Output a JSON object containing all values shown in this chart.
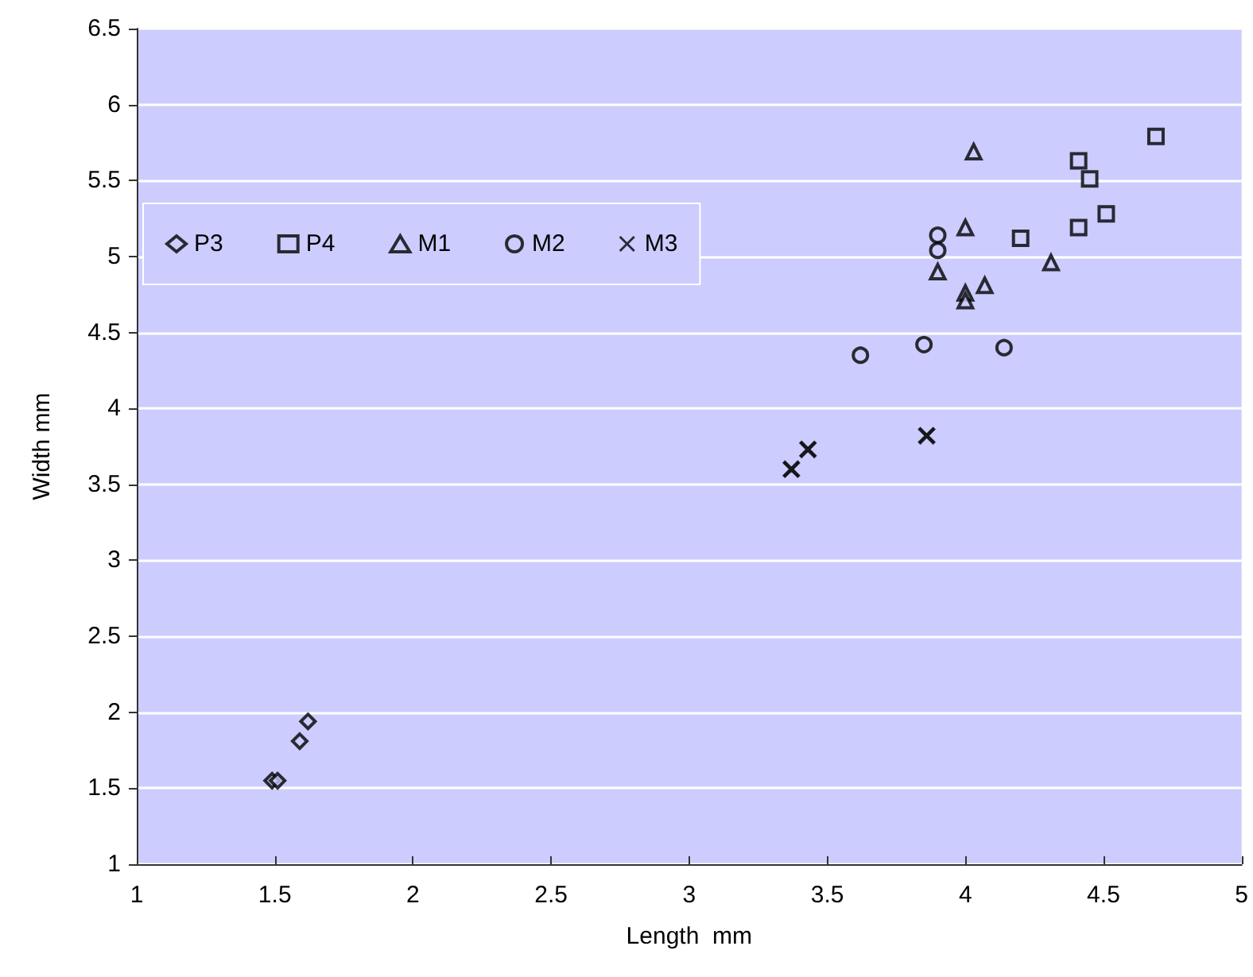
{
  "chart_data": {
    "type": "scatter",
    "xlabel": "Length  mm",
    "ylabel": "Width mm",
    "xlim": [
      1,
      5
    ],
    "xticks": [
      1,
      1.5,
      2,
      2.5,
      3,
      3.5,
      4,
      4.5,
      5
    ],
    "ylim": [
      1,
      6.5
    ],
    "yticks": [
      1,
      1.5,
      2,
      2.5,
      3,
      3.5,
      4,
      4.5,
      5,
      5.5,
      6,
      6.5
    ],
    "grid": "y",
    "legend": "top left",
    "series": [
      {
        "name": "P3",
        "color": "#000000",
        "marker": "diamond",
        "x": [
          1.49,
          1.51,
          1.59,
          1.62
        ],
        "values": [
          1.55,
          1.55,
          1.81,
          1.94
        ]
      },
      {
        "name": "P4",
        "color": "#000000",
        "marker": "square",
        "x": [
          4.41,
          4.45,
          4.51,
          4.41,
          4.2,
          4.69
        ],
        "values": [
          5.63,
          5.51,
          5.28,
          5.19,
          5.12,
          5.79
        ]
      },
      {
        "name": "M1",
        "color": "#000000",
        "marker": "triangle",
        "x": [
          4.03,
          4.0,
          3.9,
          4.0,
          4.0,
          4.07,
          4.31
        ],
        "values": [
          5.69,
          5.19,
          4.9,
          4.76,
          4.71,
          4.81,
          4.96
        ]
      },
      {
        "name": "M2",
        "color": "#000000",
        "marker": "circle",
        "x": [
          3.9,
          3.9,
          3.62,
          3.85,
          4.14
        ],
        "values": [
          5.14,
          5.04,
          4.35,
          4.42,
          4.4
        ]
      },
      {
        "name": "M3",
        "color": "#000000",
        "marker": "cross",
        "x": [
          3.37,
          3.43,
          3.86
        ],
        "values": [
          3.6,
          3.73,
          3.82
        ]
      }
    ]
  }
}
